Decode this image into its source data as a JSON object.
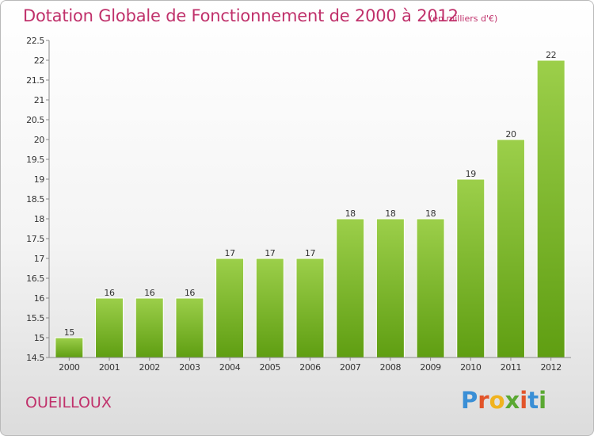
{
  "header": {
    "title": "Dotation Globale de Fonctionnement de 2000 à 2012",
    "subtitle": "(en milliers d'€)"
  },
  "footer": {
    "commune": "OUEILLOUX",
    "logo": "Proxiti"
  },
  "colors": {
    "accent": "#c0316b",
    "bar_light": "#9ccf4a",
    "bar_dark": "#5f9e12"
  },
  "chart_data": {
    "type": "bar",
    "title": "Dotation Globale de Fonctionnement de 2000 à 2012",
    "subtitle": "(en milliers d'€)",
    "categories": [
      "2000",
      "2001",
      "2002",
      "2003",
      "2004",
      "2005",
      "2006",
      "2007",
      "2008",
      "2009",
      "2010",
      "2011",
      "2012"
    ],
    "values": [
      15,
      16,
      16,
      16,
      17,
      17,
      17,
      18,
      18,
      18,
      19,
      20,
      22
    ],
    "ylim": [
      14.5,
      22.5
    ],
    "yticks": [
      14.5,
      15,
      15.5,
      16,
      16.5,
      17,
      17.5,
      18,
      18.5,
      19,
      19.5,
      20,
      20.5,
      21,
      21.5,
      22,
      22.5
    ],
    "grid": false,
    "data_labels": true
  }
}
